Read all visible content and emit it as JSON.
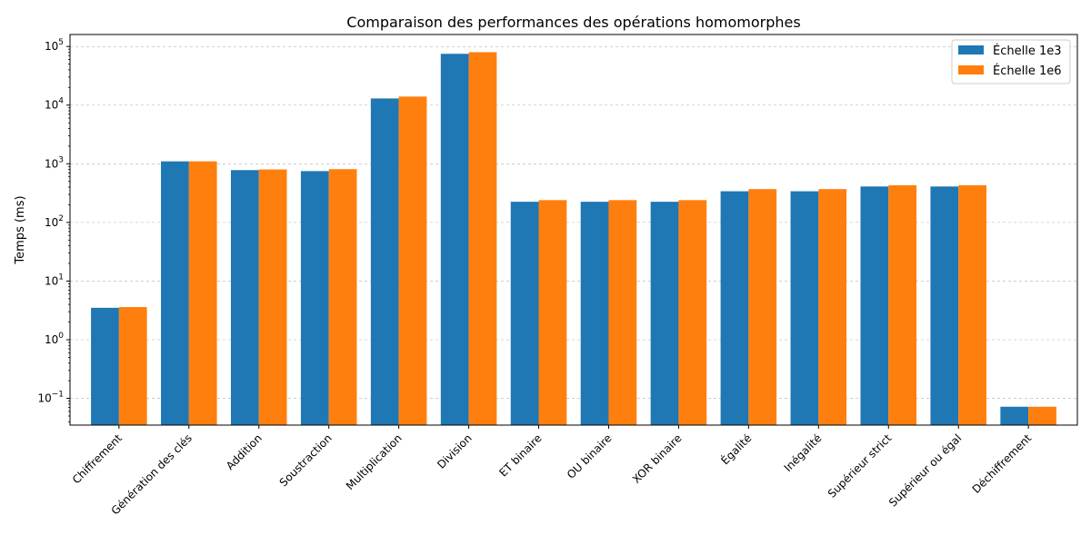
{
  "chart_data": {
    "type": "bar",
    "title": "Comparaison des performances des opérations homomorphes",
    "xlabel": "",
    "ylabel": "Temps (ms)",
    "yscale": "log",
    "ylim": [
      0.035,
      160000
    ],
    "grid": "y-major dashed",
    "legend_position": "top-right",
    "categories": [
      "Chiffrement",
      "Génération des clés",
      "Addition",
      "Soustraction",
      "Multiplication",
      "Division",
      "ET binaire",
      "OU binaire",
      "XOR binaire",
      "Égalité",
      "Inégalité",
      "Supérieur strict",
      "Supérieur ou égal",
      "Déchiffrement"
    ],
    "series": [
      {
        "name": "Échelle 1e3",
        "color": "#1f77b4",
        "values": [
          3.5,
          1100,
          780,
          750,
          13000,
          75000,
          225,
          225,
          225,
          340,
          340,
          410,
          410,
          0.072
        ]
      },
      {
        "name": "Échelle 1e6",
        "color": "#ff7f0e",
        "values": [
          3.6,
          1100,
          800,
          810,
          14000,
          80000,
          240,
          240,
          240,
          370,
          370,
          430,
          430,
          0.072
        ]
      }
    ],
    "y_ticks": [
      {
        "value": 0.1,
        "mantissa": "10",
        "exp": "−1"
      },
      {
        "value": 1,
        "mantissa": "10",
        "exp": "0"
      },
      {
        "value": 10,
        "mantissa": "10",
        "exp": "1"
      },
      {
        "value": 100,
        "mantissa": "10",
        "exp": "2"
      },
      {
        "value": 1000,
        "mantissa": "10",
        "exp": "3"
      },
      {
        "value": 10000,
        "mantissa": "10",
        "exp": "4"
      },
      {
        "value": 100000,
        "mantissa": "10",
        "exp": "5"
      }
    ]
  }
}
